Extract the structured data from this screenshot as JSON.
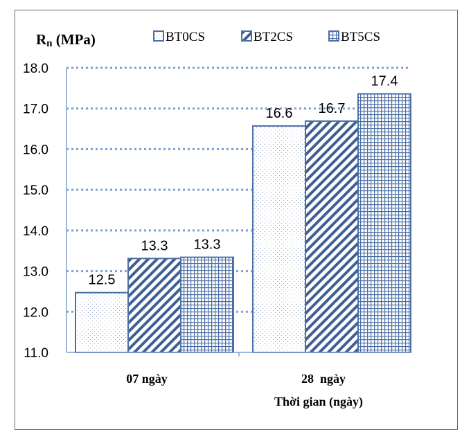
{
  "chart_data": {
    "type": "bar",
    "ylabel_main": "R",
    "ylabel_sub": "n",
    "ylabel_unit": " (MPa)",
    "xlabel": "Thời gian (ngày)",
    "categories": [
      "07 ngày",
      "28  ngày"
    ],
    "series": [
      {
        "name": "BT0CS",
        "values": [
          12.5,
          16.6
        ],
        "pattern": "dots"
      },
      {
        "name": "BT2CS",
        "values": [
          13.3,
          16.7
        ],
        "pattern": "diagonal"
      },
      {
        "name": "BT5CS",
        "values": [
          13.3,
          17.4
        ],
        "pattern": "grid"
      }
    ],
    "series_true_values": [
      [
        12.47,
        16.57
      ],
      [
        13.31,
        16.69
      ],
      [
        13.34,
        17.36
      ]
    ],
    "ylim": [
      11.0,
      18.0
    ],
    "yticks": [
      "11.0",
      "12.0",
      "13.0",
      "14.0",
      "15.0",
      "16.0",
      "17.0",
      "18.0"
    ],
    "grid": true,
    "legend": "top",
    "colors": {
      "bar_stroke": "#4a6fa5",
      "grid": "#7f9fd0",
      "text": "#000000"
    }
  }
}
